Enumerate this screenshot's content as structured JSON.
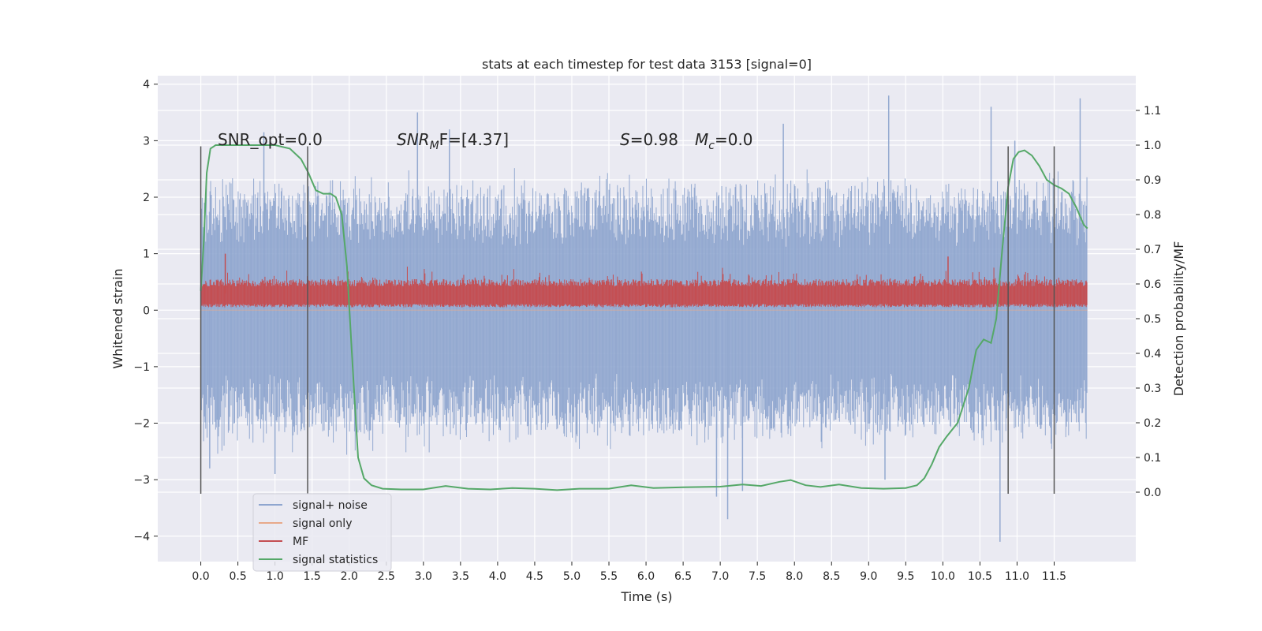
{
  "chart_data": {
    "type": "line",
    "title": "stats at each timestep for test data 3153 [signal=0]",
    "xlabel": "Time (s)",
    "ylabel": "Whitened strain",
    "ylabel_right": "Detection probability/MF",
    "xlim": [
      -0.58,
      12.6
    ],
    "ylim": [
      -4.45,
      4.15
    ],
    "ylim_right": [
      -0.2,
      1.2
    ],
    "x_ticks": [
      "0.0",
      "0.5",
      "1.0",
      "1.5",
      "2.0",
      "2.5",
      "3.0",
      "3.5",
      "4.0",
      "4.5",
      "5.0",
      "5.5",
      "6.0",
      "6.5",
      "7.0",
      "7.5",
      "8.0",
      "8.5",
      "9.0",
      "9.5",
      "10.0",
      "10.5",
      "11.0",
      "11.5"
    ],
    "y_ticks": [
      "4",
      "3",
      "2",
      "1",
      "0",
      "−1",
      "−2",
      "−3",
      "−4"
    ],
    "y_right_ticks": [
      "1.1",
      "1.0",
      "0.9",
      "0.8",
      "0.7",
      "0.6",
      "0.5",
      "0.4",
      "0.3",
      "0.2",
      "0.1",
      "0.0"
    ],
    "grid": true,
    "legend_position": "lower-left",
    "annotations": {
      "snr_opt": "SNR_opt=0.0",
      "snr_mf_main": "SNR",
      "snr_mf_sub": "M",
      "snr_mf_rest": "F=[4.37]",
      "s_main": "S",
      "s_rest": "=0.98",
      "mc_main": "M",
      "mc_sub": "c",
      "mc_rest": "=0.0"
    },
    "vertical_lines": [
      0.0,
      1.44,
      10.88,
      11.5
    ],
    "vertical_line_range": [
      -3.25,
      2.9
    ],
    "series": [
      {
        "name": "signal+ noise",
        "color": "#8fa6cf",
        "style": "dense-noise",
        "x_range": [
          0.0,
          11.95
        ],
        "typical_range": [
          -2.0,
          2.0
        ],
        "extreme_peaks": [
          {
            "x": 0.85,
            "y": 3.15
          },
          {
            "x": 2.92,
            "y": 3.5
          },
          {
            "x": 3.35,
            "y": 3.2
          },
          {
            "x": 7.85,
            "y": 3.3
          },
          {
            "x": 9.27,
            "y": 3.8
          },
          {
            "x": 10.65,
            "y": 3.6
          },
          {
            "x": 11.85,
            "y": 3.75
          },
          {
            "x": 10.97,
            "y": 3.0
          },
          {
            "x": 7.1,
            "y": -3.7
          },
          {
            "x": 10.77,
            "y": -4.1
          },
          {
            "x": 6.95,
            "y": -3.3
          },
          {
            "x": 7.3,
            "y": -3.2
          },
          {
            "x": 0.12,
            "y": -2.8
          },
          {
            "x": 9.22,
            "y": -3.0
          },
          {
            "x": 1.0,
            "y": -2.9
          }
        ]
      },
      {
        "name": "signal only",
        "color": "#e8a98a",
        "style": "flat",
        "x_range": [
          0.0,
          11.95
        ],
        "value": 0.0
      },
      {
        "name": "MF",
        "color": "#c44e52",
        "style": "dense-band",
        "x_range": [
          0.0,
          11.95
        ],
        "typical_range": [
          0.0,
          0.55
        ],
        "extreme_peaks": [
          {
            "x": 0.33,
            "y": 1.0
          },
          {
            "x": 10.07,
            "y": 0.95
          }
        ]
      },
      {
        "name": "signal statistics",
        "color": "#55a868",
        "axis": "right",
        "x": [
          0.0,
          0.04,
          0.08,
          0.13,
          0.2,
          0.3,
          0.45,
          0.6,
          0.8,
          1.0,
          1.2,
          1.35,
          1.45,
          1.55,
          1.65,
          1.75,
          1.82,
          1.9,
          1.97,
          2.05,
          2.12,
          2.2,
          2.3,
          2.45,
          2.7,
          3.0,
          3.3,
          3.6,
          3.9,
          4.2,
          4.5,
          4.8,
          5.1,
          5.5,
          5.8,
          6.1,
          6.5,
          7.0,
          7.3,
          7.55,
          7.8,
          7.95,
          8.15,
          8.35,
          8.6,
          8.9,
          9.2,
          9.5,
          9.65,
          9.75,
          9.85,
          9.95,
          10.05,
          10.2,
          10.35,
          10.45,
          10.55,
          10.65,
          10.72,
          10.8,
          10.88,
          10.95,
          11.02,
          11.1,
          11.2,
          11.3,
          11.4,
          11.5,
          11.6,
          11.7,
          11.8,
          11.9,
          11.95
        ],
        "y": [
          0.58,
          0.72,
          0.92,
          0.99,
          1.0,
          1.0,
          1.0,
          1.0,
          1.0,
          1.0,
          0.99,
          0.96,
          0.92,
          0.87,
          0.86,
          0.86,
          0.85,
          0.8,
          0.65,
          0.35,
          0.1,
          0.04,
          0.02,
          0.01,
          0.008,
          0.008,
          0.018,
          0.01,
          0.008,
          0.012,
          0.01,
          0.006,
          0.01,
          0.01,
          0.02,
          0.012,
          0.014,
          0.016,
          0.022,
          0.018,
          0.03,
          0.035,
          0.02,
          0.015,
          0.022,
          0.012,
          0.01,
          0.012,
          0.02,
          0.04,
          0.08,
          0.13,
          0.16,
          0.2,
          0.3,
          0.41,
          0.44,
          0.43,
          0.5,
          0.7,
          0.88,
          0.96,
          0.98,
          0.985,
          0.97,
          0.94,
          0.9,
          0.885,
          0.875,
          0.86,
          0.82,
          0.77,
          0.76
        ]
      }
    ]
  }
}
